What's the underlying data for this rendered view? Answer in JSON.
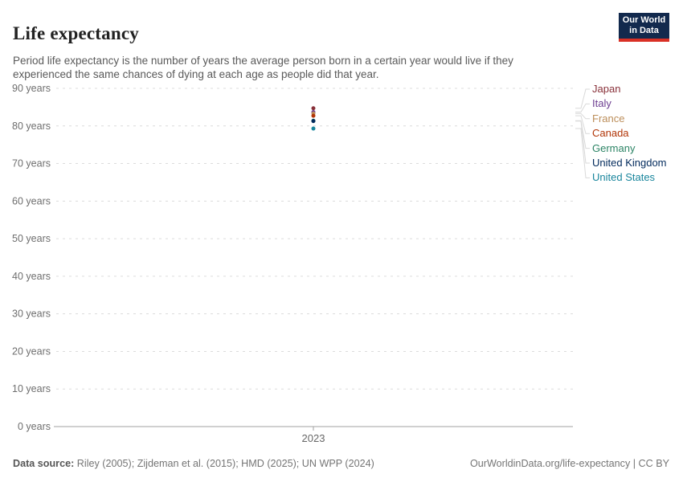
{
  "header": {
    "title": "Life expectancy",
    "subtitle": "Period life expectancy is the number of years the average person born in a certain year would live if they experienced the same chances of dying at each age as people did that year.",
    "logo": {
      "line1": "Our World",
      "line2": "in Data",
      "bg_color": "#12294d",
      "bar_color": "#d93025"
    }
  },
  "chart_data": {
    "type": "scatter",
    "title": "Life expectancy",
    "x": [
      2023
    ],
    "x_tick_label": "2023",
    "y_ticks": [
      0,
      10,
      20,
      30,
      40,
      50,
      60,
      70,
      80,
      90
    ],
    "y_tick_suffix": " years",
    "ylim": [
      0,
      90
    ],
    "grid": "horizontal-dashed",
    "legend_position": "right",
    "unit": "years",
    "series": [
      {
        "name": "Japan",
        "color": "#883039",
        "value": 84.7
      },
      {
        "name": "Italy",
        "color": "#6D3E91",
        "value": 83.7
      },
      {
        "name": "France",
        "color": "#BC8E5A",
        "value": 83.3
      },
      {
        "name": "Canada",
        "color": "#B13507",
        "value": 82.7
      },
      {
        "name": "Germany",
        "color": "#2C8465",
        "value": 81.4
      },
      {
        "name": "United Kingdom",
        "color": "#00295B",
        "value": 81.3
      },
      {
        "name": "United States",
        "color": "#18859C",
        "value": 79.3
      }
    ]
  },
  "footer": {
    "data_source_label": "Data source:",
    "data_source_text": " Riley (2005); Zijdeman et al. (2015); HMD (2025); UN WPP (2024)",
    "link_text": "OurWorldinData.org/life-expectancy | CC BY"
  }
}
